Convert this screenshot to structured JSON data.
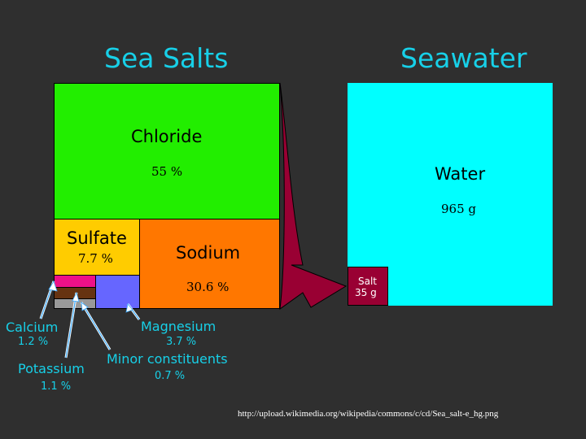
{
  "titles": {
    "left": "Sea Salts",
    "right": "Seawater"
  },
  "sea_salts": {
    "chloride": {
      "name": "Chloride",
      "value": "55 %",
      "color": "#22ee00"
    },
    "sulfate": {
      "name": "Sulfate",
      "value": "7.7 %",
      "color": "#ffcc00"
    },
    "sodium": {
      "name": "Sodium",
      "value": "30.6 %",
      "color": "#ff7700"
    },
    "calcium": {
      "name": "Calcium",
      "value": "1.2 %",
      "color": "#ee1188"
    },
    "potassium": {
      "name": "Potassium",
      "value": "1.1 %",
      "color": "#663311"
    },
    "magnesium": {
      "name": "Magnesium",
      "value": "3.7 %",
      "color": "#6666ff"
    },
    "minor": {
      "name": "Minor constituents",
      "value": "0.7 %",
      "color": "#999999"
    }
  },
  "seawater": {
    "water": {
      "name": "Water",
      "value": "965 g",
      "color": "#00ffff"
    },
    "salt": {
      "name": "Salt",
      "value": "35 g",
      "color": "#990033"
    }
  },
  "arrow_color": "#990033",
  "source": "http://upload.wikimedia.org/wikipedia/commons/c/cd/Sea_salt-e_hg.png"
}
